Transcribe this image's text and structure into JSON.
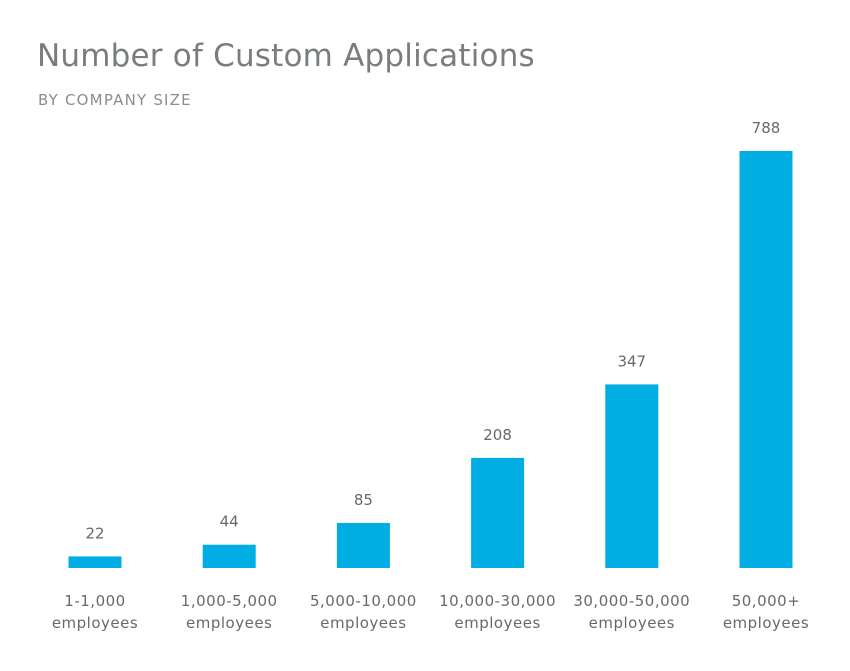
{
  "chart_data": {
    "type": "bar",
    "title": "Number of Custom Applications",
    "subtitle": "BY COMPANY SIZE",
    "categories": [
      [
        "1-1,000",
        "employees"
      ],
      [
        "1,000-5,000",
        "employees"
      ],
      [
        "5,000-10,000",
        "employees"
      ],
      [
        "10,000-30,000",
        "employees"
      ],
      [
        "30,000-50,000",
        "employees"
      ],
      [
        "50,000+",
        "employees"
      ]
    ],
    "values": [
      22,
      44,
      85,
      208,
      347,
      788
    ],
    "xlabel": "",
    "ylabel": "",
    "ylim": [
      0,
      788
    ],
    "grid": false,
    "bar_color": "#00aee3",
    "text_color": "#66696c"
  }
}
